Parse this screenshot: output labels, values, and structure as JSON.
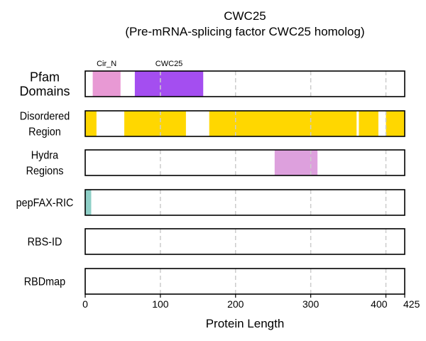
{
  "chart_data": {
    "type": "bar",
    "title": "CWC25",
    "subtitle": "(Pre-mRNA-splicing factor CWC25 homolog)",
    "xlabel": "Protein Length",
    "xlim": [
      0,
      425
    ],
    "xticks": [
      0,
      100,
      200,
      300,
      400,
      425
    ],
    "xtick_labels": [
      "0",
      "100",
      "200",
      "300",
      "400",
      "425"
    ],
    "grid_x": [
      100,
      200,
      300,
      400
    ],
    "tracks": [
      {
        "label_lines": [
          "Pfam",
          "Domains"
        ],
        "segments": [
          {
            "start": 10,
            "end": 47,
            "color": "#e899d4",
            "label": "Cir_N"
          },
          {
            "start": 66,
            "end": 157,
            "color": "#a44ef0",
            "label": "CWC25"
          }
        ]
      },
      {
        "label_lines": [
          "Disordered",
          "Region"
        ],
        "segments": [
          {
            "start": 0,
            "end": 15,
            "color": "#ffd700"
          },
          {
            "start": 52,
            "end": 134,
            "color": "#ffd700"
          },
          {
            "start": 165,
            "end": 361,
            "color": "#ffd700"
          },
          {
            "start": 364,
            "end": 390,
            "color": "#ffd700"
          },
          {
            "start": 400,
            "end": 425,
            "color": "#ffd700"
          }
        ]
      },
      {
        "label_lines": [
          "Hydra",
          "Regions"
        ],
        "segments": [
          {
            "start": 252,
            "end": 309,
            "color": "#dda0dd"
          }
        ]
      },
      {
        "label_lines": [
          "pepFAX-RIC"
        ],
        "segments": [
          {
            "start": 0,
            "end": 8,
            "color": "#8ecfc7"
          }
        ]
      },
      {
        "label_lines": [
          "RBS-ID"
        ],
        "segments": []
      },
      {
        "label_lines": [
          "RBDmap"
        ],
        "segments": []
      }
    ]
  }
}
